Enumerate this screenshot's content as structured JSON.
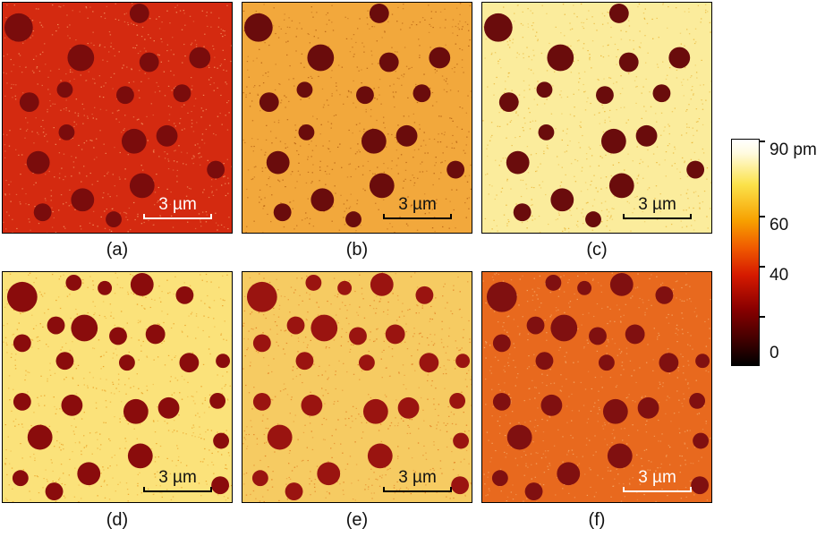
{
  "panels": [
    {
      "label": "(a)",
      "scale_text": "3 µm",
      "bg": "#d42a10",
      "dot": "#7a0c0c",
      "noise": "#f7a06a",
      "scalebar_color": "#ffffff"
    },
    {
      "label": "(b)",
      "scale_text": "3 µm",
      "bg": "#f2a83c",
      "dot": "#6a0c0c",
      "noise": "#b05a10",
      "scalebar_color": "#000000"
    },
    {
      "label": "(c)",
      "scale_text": "3 µm",
      "bg": "#fbec9c",
      "dot": "#6a0c0c",
      "noise": "#e8b030",
      "scalebar_color": "#000000"
    },
    {
      "label": "(d)",
      "scale_text": "3 µm",
      "bg": "#fbe27a",
      "dot": "#8a0c0c",
      "noise": "#e89a20",
      "scalebar_color": "#000000"
    },
    {
      "label": "(e)",
      "scale_text": "3 µm",
      "bg": "#f6cb62",
      "dot": "#9a1410",
      "noise": "#e07a20",
      "scalebar_color": "#000000"
    },
    {
      "label": "(f)",
      "scale_text": "3 µm",
      "bg": "#e8691e",
      "dot": "#801010",
      "noise": "#f7b070",
      "scalebar_color": "#ffffff"
    }
  ],
  "colorbar": {
    "tick_labels": [
      "90 pm",
      "60",
      "40",
      "0"
    ],
    "values": [
      90,
      60,
      40,
      0
    ]
  }
}
